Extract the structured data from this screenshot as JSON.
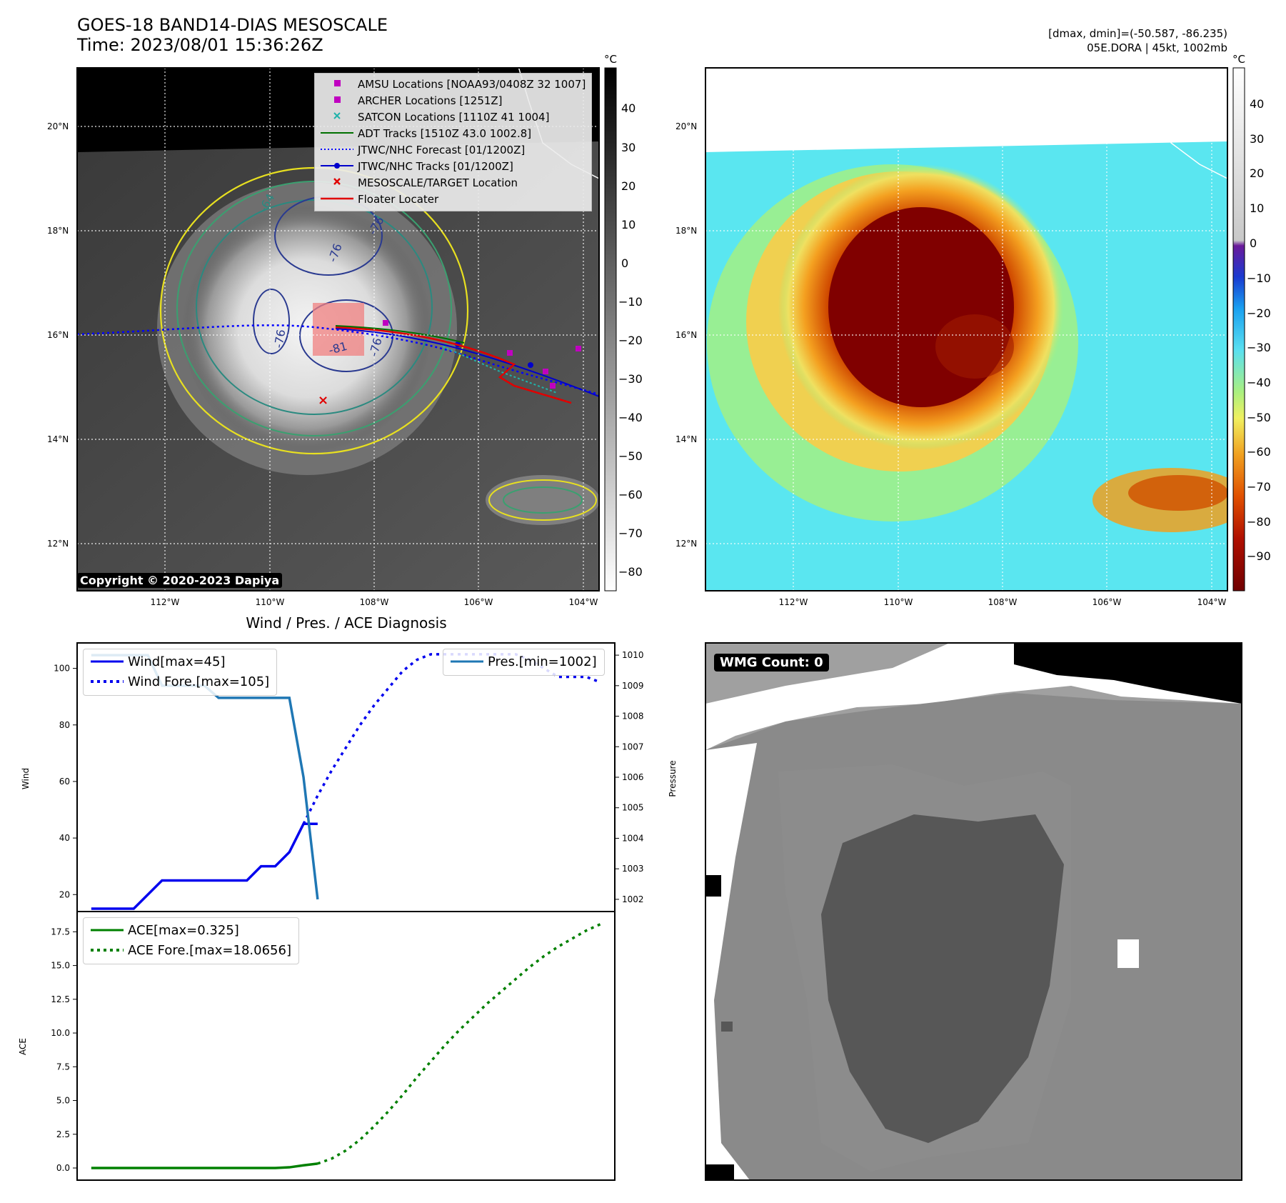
{
  "title_line1": "GOES-18 BAND14-DIAS MESOSCALE",
  "title_line2": "Time: 2023/08/01 15:36:26Z",
  "top_right_line1": "[dmax, dmin]=(-50.587, -86.235)",
  "top_right_line2": "05E.DORA | 45kt, 1002mb",
  "copyright": "Copyright © 2020-2023 Dapiya",
  "wmg_count": "WMG Count: 0",
  "map": {
    "lat_labels": [
      "20°N",
      "18°N",
      "16°N",
      "14°N",
      "12°N"
    ],
    "lon_labels": [
      "112°W",
      "110°W",
      "108°W",
      "106°W",
      "104°W"
    ],
    "contour_labels": [
      "-64",
      "-76",
      "-76",
      "-76",
      "-81",
      "-76"
    ]
  },
  "colorbar_gray": {
    "unit": "°C",
    "ticks": [
      "40",
      "30",
      "20",
      "10",
      "0",
      "−10",
      "−20",
      "−30",
      "−40",
      "−50",
      "−60",
      "−70",
      "−80"
    ]
  },
  "colorbar_enh": {
    "unit": "°C",
    "ticks": [
      "40",
      "30",
      "20",
      "10",
      "0",
      "−10",
      "−20",
      "−30",
      "−40",
      "−50",
      "−60",
      "−70",
      "−80",
      "−90"
    ]
  },
  "legend": [
    {
      "label": "AMSU Locations [NOAA93/0408Z 32 1007]",
      "symbol": "square",
      "color": "#c000c0"
    },
    {
      "label": "ARCHER Locations [1251Z]",
      "symbol": "square",
      "color": "#c000c0"
    },
    {
      "label": "SATCON Locations [1110Z 41 1004]",
      "symbol": "x",
      "color": "#20b2aa"
    },
    {
      "label": "ADT Tracks [1510Z 43.0 1002.8]",
      "symbol": "line",
      "color": "#007000"
    },
    {
      "label": "JTWC/NHC Forecast [01/1200Z]",
      "symbol": "dotted",
      "color": "#0000ff"
    },
    {
      "label": "JTWC/NHC Tracks [01/1200Z]",
      "symbol": "line-dot",
      "color": "#0000cc"
    },
    {
      "label": "MESOSCALE/TARGET Location",
      "symbol": "x",
      "color": "#e00000"
    },
    {
      "label": "Floater Locater",
      "symbol": "line",
      "color": "#e00000"
    }
  ],
  "diag_title": "Wind / Pres. / ACE Diagnosis",
  "chart_data": [
    {
      "type": "line",
      "title": "Wind / Pres. / ACE Diagnosis",
      "ylabel": "Wind",
      "y2label": "Pressure",
      "ylim": [
        14,
        109
      ],
      "y2lim": [
        1001.6,
        1010.4
      ],
      "yticks": [
        "100",
        "80",
        "60",
        "40",
        "20"
      ],
      "y2ticks": [
        "1010",
        "1009",
        "1008",
        "1007",
        "1006",
        "1005",
        "1004",
        "1003",
        "1002"
      ],
      "series": [
        {
          "name": "Wind[max=45]",
          "color": "#0000ee",
          "style": "solid",
          "x": [
            0,
            1,
            2,
            3,
            4,
            5,
            6,
            7,
            8,
            9,
            10,
            11,
            12,
            13,
            14,
            15,
            16
          ],
          "values": [
            15,
            15,
            15,
            15,
            20,
            25,
            25,
            25,
            25,
            25,
            25,
            25,
            30,
            30,
            35,
            45,
            45
          ]
        },
        {
          "name": "Wind Fore.[max=105]",
          "color": "#0000ee",
          "style": "dotted",
          "x": [
            15,
            16,
            17,
            18,
            19,
            20,
            21,
            22,
            23,
            24,
            25,
            26,
            27,
            28,
            29,
            30,
            31,
            32,
            33,
            34,
            35,
            36
          ],
          "values": [
            45,
            55,
            64,
            72,
            80,
            87,
            93,
            99,
            103,
            105,
            105,
            105,
            105,
            105,
            105,
            105,
            103,
            100,
            97,
            97,
            97,
            95
          ]
        },
        {
          "name": "Pres.[min=1002]",
          "color": "#1f77b4",
          "style": "solid",
          "axis": "right",
          "x": [
            0,
            1,
            2,
            3,
            4,
            5,
            6,
            7,
            8,
            9,
            10,
            11,
            12,
            13,
            14,
            15,
            16
          ],
          "values": [
            1010,
            1010,
            1010,
            1010,
            1010,
            1009,
            1009,
            1009,
            1009,
            1008.6,
            1008.6,
            1008.6,
            1008.6,
            1008.6,
            1008.6,
            1006,
            1002
          ]
        }
      ]
    },
    {
      "type": "line",
      "ylabel": "ACE",
      "ylim": [
        -0.9,
        19.0
      ],
      "yticks": [
        "17.5",
        "15.0",
        "12.5",
        "10.0",
        "7.5",
        "5.0",
        "2.5",
        "0.0"
      ],
      "series": [
        {
          "name": "ACE[max=0.325]",
          "color": "#008000",
          "style": "solid",
          "x": [
            0,
            1,
            2,
            3,
            4,
            5,
            6,
            7,
            8,
            9,
            10,
            11,
            12,
            13,
            14,
            15,
            16
          ],
          "values": [
            0,
            0,
            0,
            0,
            0,
            0,
            0,
            0,
            0,
            0,
            0,
            0,
            0,
            0,
            0.05,
            0.2,
            0.325
          ]
        },
        {
          "name": "ACE Fore.[max=18.0656]",
          "color": "#008000",
          "style": "dotted",
          "x": [
            16,
            17,
            18,
            19,
            20,
            21,
            22,
            23,
            24,
            25,
            26,
            27,
            28,
            29,
            30,
            31,
            32,
            33,
            34,
            35,
            36
          ],
          "values": [
            0.325,
            0.7,
            1.3,
            2.1,
            3.1,
            4.2,
            5.4,
            6.7,
            7.9,
            9.1,
            10.2,
            11.2,
            12.2,
            13.1,
            14.0,
            14.9,
            15.7,
            16.4,
            17.0,
            17.6,
            18.07
          ]
        }
      ]
    }
  ]
}
